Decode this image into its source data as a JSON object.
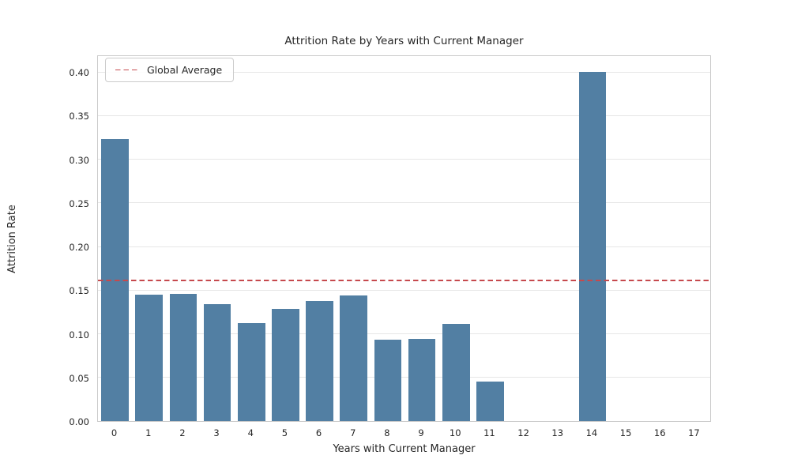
{
  "chart_data": {
    "type": "bar",
    "title": "Attrition Rate by Years with Current Manager",
    "xlabel": "Years with Current Manager",
    "ylabel": "Attrition Rate",
    "categories": [
      "0",
      "1",
      "2",
      "3",
      "4",
      "5",
      "6",
      "7",
      "8",
      "9",
      "10",
      "11",
      "12",
      "13",
      "14",
      "15",
      "16",
      "17"
    ],
    "values": [
      0.3232,
      0.1447,
      0.1453,
      0.1338,
      0.1122,
      0.129,
      0.1379,
      0.1435,
      0.0935,
      0.0938,
      0.1111,
      0.0455,
      0.0,
      0.0,
      0.4,
      0.0,
      0.0,
      0.0
    ],
    "ylim": [
      0,
      0.42
    ],
    "yticks": [
      0.0,
      0.05,
      0.1,
      0.15,
      0.2,
      0.25,
      0.3,
      0.35,
      0.4
    ],
    "ytick_labels": [
      "0.00",
      "0.05",
      "0.10",
      "0.15",
      "0.20",
      "0.25",
      "0.30",
      "0.35",
      "0.40"
    ],
    "grid": "horizontal",
    "legend": {
      "label": "Global Average",
      "position": "upper-left"
    },
    "global_average": 0.1612,
    "colors": {
      "bar": "#527fa3",
      "avg_line": "#c6494d",
      "grid": "#e6e6e6",
      "spine": "#cbcbcb",
      "text": "#262626"
    }
  }
}
